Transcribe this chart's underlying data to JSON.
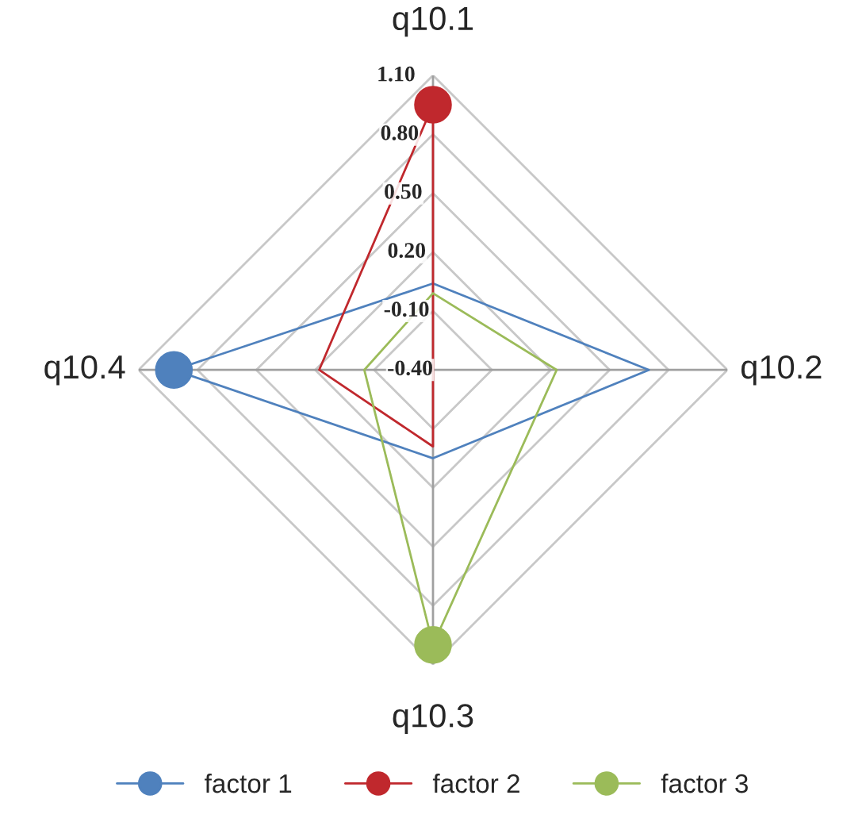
{
  "chart_data": {
    "type": "radar",
    "categories": [
      "q10.1",
      "q10.2",
      "q10.3",
      "q10.4"
    ],
    "series": [
      {
        "name": "factor 1",
        "color": "#4f81bd",
        "values": [
          0.04,
          0.7,
          0.05,
          0.92
        ]
      },
      {
        "name": "factor 2",
        "color": "#c0282d",
        "values": [
          0.95,
          -0.4,
          -0.01,
          0.18
        ]
      },
      {
        "name": "factor 3",
        "color": "#9bbb59",
        "values": [
          -0.01,
          0.23,
          1.0,
          -0.05
        ]
      }
    ],
    "ylim": [
      -0.4,
      1.1
    ],
    "yticks": [
      {
        "value": -0.4,
        "label": "-0.40"
      },
      {
        "value": -0.1,
        "label": "-0.10"
      },
      {
        "value": 0.2,
        "label": "0.20"
      },
      {
        "value": 0.5,
        "label": "0.50"
      },
      {
        "value": 0.8,
        "label": "0.80"
      },
      {
        "value": 1.1,
        "label": "1.10"
      }
    ],
    "grid": true,
    "legend": "bottom",
    "marker": "circle"
  }
}
